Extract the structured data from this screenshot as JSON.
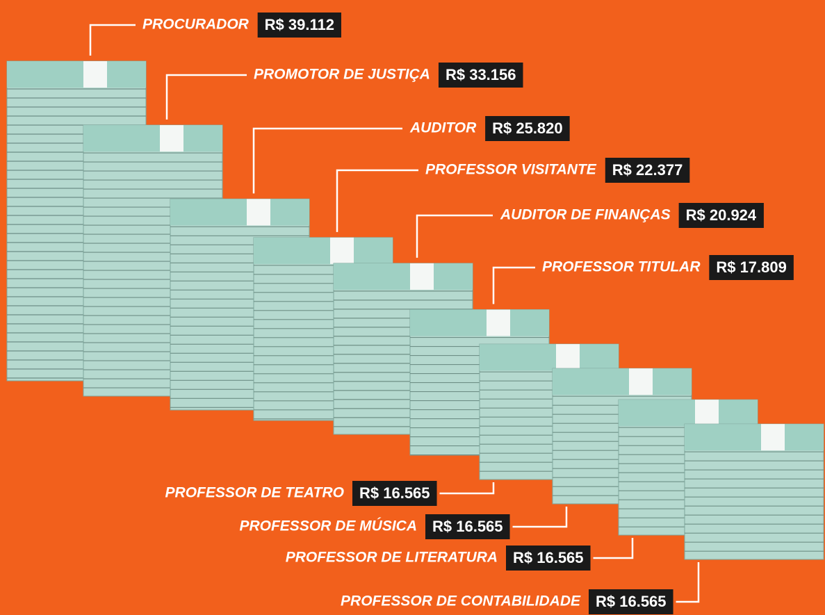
{
  "chart_data": {
    "type": "bar",
    "categories": [
      "PROCURADOR",
      "PROMOTOR DE JUSTIÇA",
      "AUDITOR",
      "PROFESSOR VISITANTE",
      "AUDITOR DE FINANÇAS",
      "PROFESSOR TITULAR",
      "PROFESSOR DE TEATRO",
      "PROFESSOR DE MÚSICA",
      "PROFESSOR DE LITERATURA",
      "PROFESSOR DE CONTABILIDADE"
    ],
    "values": [
      39112,
      33156,
      25820,
      22377,
      20924,
      17809,
      16565,
      16565,
      16565,
      16565
    ],
    "value_labels": [
      "R$ 39.112",
      "R$ 33.156",
      "R$ 25.820",
      "R$ 22.377",
      "R$ 20.924",
      "R$ 17.809",
      "R$ 16.565",
      "R$ 16.565",
      "R$ 16.565",
      "R$ 16.565"
    ],
    "color": "#b5d9cf"
  }
}
